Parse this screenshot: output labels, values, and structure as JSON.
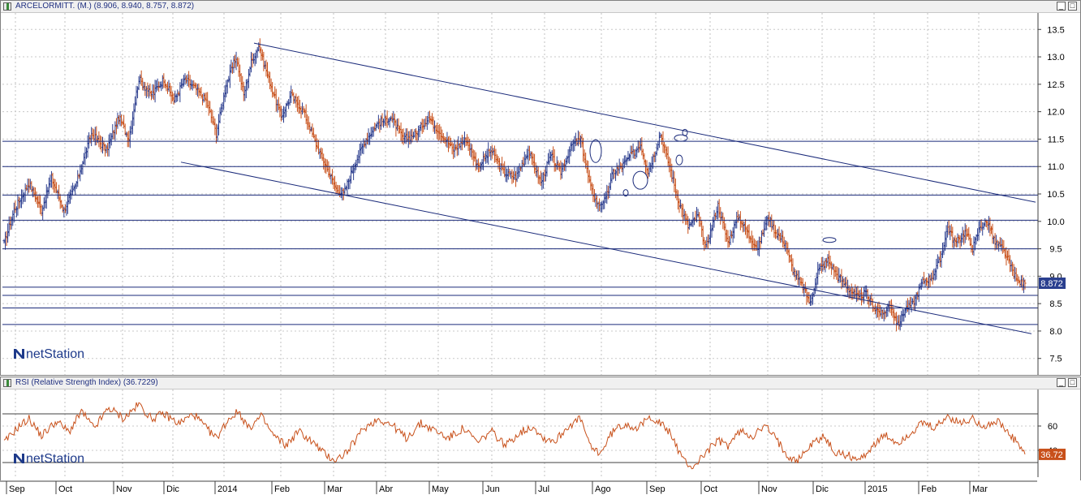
{
  "price_panel": {
    "title": "ARCELORMITT. (M.) (8.906, 8.940, 8.757, 8.872)",
    "logo": "netStation",
    "last_price_label": "8.872"
  },
  "rsi_panel": {
    "title": "RSI (Relative Strength Index) (36.7229)",
    "logo": "netStation",
    "last_value_label": "36.72"
  },
  "window_buttons": {
    "minimize": "_",
    "maximize": "□"
  },
  "colors": {
    "bar_up": "#2d3f8f",
    "bar_down": "#c8501a",
    "lines": "#1a2a7a",
    "rsi_line": "#c8501a",
    "price_tag": "#2a3f8f",
    "rsi_tag": "#c8501a"
  },
  "x_axis": {
    "labels": [
      "Sep",
      "Oct",
      "Nov",
      "Dic",
      "2014",
      "Feb",
      "Mar",
      "Abr",
      "May",
      "Jun",
      "Jul",
      "Ago",
      "Sep",
      "Oct",
      "Nov",
      "Dic",
      "2015",
      "Feb",
      "Mar"
    ]
  },
  "chart_data": [
    {
      "type": "ohlc",
      "title": "ARCELORMITT. (M.)",
      "last": {
        "open": 8.906,
        "high": 8.94,
        "low": 8.757,
        "close": 8.872
      },
      "ylim": [
        7.2,
        13.8
      ],
      "y_ticks": [
        7.5,
        8.0,
        8.5,
        9.0,
        9.5,
        10.0,
        10.5,
        11.0,
        11.5,
        12.0,
        12.5,
        13.0,
        13.5
      ],
      "x_period": [
        "2013-09",
        "2015-03"
      ],
      "anchors": [
        [
          0,
          9.6
        ],
        [
          8,
          10.2
        ],
        [
          20,
          10.7
        ],
        [
          30,
          10.2
        ],
        [
          38,
          10.8
        ],
        [
          48,
          10.2
        ],
        [
          58,
          10.7
        ],
        [
          70,
          11.6
        ],
        [
          82,
          11.3
        ],
        [
          92,
          11.9
        ],
        [
          100,
          11.5
        ],
        [
          108,
          12.6
        ],
        [
          118,
          12.3
        ],
        [
          128,
          12.6
        ],
        [
          136,
          12.2
        ],
        [
          145,
          12.6
        ],
        [
          150,
          12.5
        ],
        [
          162,
          12.2
        ],
        [
          170,
          11.6
        ],
        [
          178,
          12.5
        ],
        [
          186,
          13.0
        ],
        [
          192,
          12.3
        ],
        [
          198,
          12.9
        ],
        [
          204,
          13.2
        ],
        [
          212,
          12.6
        ],
        [
          222,
          11.9
        ],
        [
          230,
          12.3
        ],
        [
          240,
          12.0
        ],
        [
          250,
          11.4
        ],
        [
          258,
          11.0
        ],
        [
          266,
          10.6
        ],
        [
          272,
          10.5
        ],
        [
          280,
          11.0
        ],
        [
          290,
          11.5
        ],
        [
          300,
          11.8
        ],
        [
          310,
          11.9
        ],
        [
          320,
          11.5
        ],
        [
          330,
          11.6
        ],
        [
          340,
          11.9
        ],
        [
          350,
          11.6
        ],
        [
          360,
          11.3
        ],
        [
          370,
          11.5
        ],
        [
          380,
          11.0
        ],
        [
          390,
          11.3
        ],
        [
          400,
          10.9
        ],
        [
          410,
          10.8
        ],
        [
          420,
          11.3
        ],
        [
          430,
          10.7
        ],
        [
          438,
          11.2
        ],
        [
          446,
          10.9
        ],
        [
          455,
          11.4
        ],
        [
          462,
          11.5
        ],
        [
          470,
          10.6
        ],
        [
          476,
          10.3
        ],
        [
          482,
          10.4
        ],
        [
          488,
          10.9
        ],
        [
          495,
          11.0
        ],
        [
          502,
          11.2
        ],
        [
          510,
          11.4
        ],
        [
          516,
          10.9
        ],
        [
          522,
          11.3
        ],
        [
          526,
          11.6
        ],
        [
          532,
          11.1
        ],
        [
          540,
          10.4
        ],
        [
          548,
          9.9
        ],
        [
          556,
          10.1
        ],
        [
          562,
          9.5
        ],
        [
          572,
          10.3
        ],
        [
          580,
          9.6
        ],
        [
          588,
          10.1
        ],
        [
          598,
          9.7
        ],
        [
          604,
          9.5
        ],
        [
          612,
          10.1
        ],
        [
          618,
          9.8
        ],
        [
          626,
          9.6
        ],
        [
          632,
          9.1
        ],
        [
          640,
          8.8
        ],
        [
          646,
          8.5
        ],
        [
          652,
          9.1
        ],
        [
          660,
          9.3
        ],
        [
          668,
          9.0
        ],
        [
          676,
          8.8
        ],
        [
          684,
          8.6
        ],
        [
          690,
          8.7
        ],
        [
          698,
          8.4
        ],
        [
          704,
          8.3
        ],
        [
          710,
          8.5
        ],
        [
          716,
          8.1
        ],
        [
          722,
          8.4
        ],
        [
          728,
          8.5
        ],
        [
          736,
          8.9
        ],
        [
          744,
          9.0
        ],
        [
          750,
          9.3
        ],
        [
          756,
          9.9
        ],
        [
          762,
          9.6
        ],
        [
          770,
          9.8
        ],
        [
          776,
          9.5
        ],
        [
          782,
          9.9
        ],
        [
          788,
          10.0
        ],
        [
          794,
          9.6
        ],
        [
          800,
          9.5
        ],
        [
          806,
          9.2
        ],
        [
          812,
          8.9
        ],
        [
          818,
          8.87
        ]
      ],
      "h_lines": [
        11.46,
        11.0,
        10.48,
        10.02,
        9.5,
        8.8,
        8.65,
        8.42,
        8.12
      ],
      "trendlines": [
        {
          "from": [
            "2014-02-w1",
            13.25
          ],
          "to": [
            "2015-03-end",
            10.35
          ]
        },
        {
          "from": [
            "2013-12-w1",
            11.08
          ],
          "to": [
            "2015-03-end",
            7.95
          ]
        }
      ],
      "annotations": [
        "ellipse",
        "ellipse",
        "ellipse",
        "ellipse",
        "ellipse",
        "ellipse",
        "ellipse"
      ]
    },
    {
      "type": "line",
      "title": "RSI (Relative Strength Index)",
      "last_value": 36.7229,
      "ylim": [
        18,
        90
      ],
      "y_ticks": [
        40,
        60
      ],
      "h_lines": [
        70,
        30
      ],
      "anchors": [
        [
          0,
          46
        ],
        [
          10,
          58
        ],
        [
          20,
          66
        ],
        [
          30,
          52
        ],
        [
          42,
          64
        ],
        [
          52,
          55
        ],
        [
          62,
          72
        ],
        [
          72,
          58
        ],
        [
          84,
          75
        ],
        [
          96,
          66
        ],
        [
          108,
          78
        ],
        [
          118,
          66
        ],
        [
          128,
          70
        ],
        [
          140,
          62
        ],
        [
          152,
          70
        ],
        [
          162,
          58
        ],
        [
          170,
          50
        ],
        [
          180,
          66
        ],
        [
          188,
          72
        ],
        [
          196,
          58
        ],
        [
          206,
          68
        ],
        [
          216,
          52
        ],
        [
          226,
          44
        ],
        [
          236,
          56
        ],
        [
          248,
          46
        ],
        [
          258,
          36
        ],
        [
          266,
          32
        ],
        [
          276,
          40
        ],
        [
          288,
          58
        ],
        [
          300,
          66
        ],
        [
          312,
          60
        ],
        [
          322,
          50
        ],
        [
          334,
          62
        ],
        [
          346,
          56
        ],
        [
          356,
          50
        ],
        [
          368,
          58
        ],
        [
          380,
          46
        ],
        [
          390,
          56
        ],
        [
          402,
          44
        ],
        [
          412,
          54
        ],
        [
          424,
          60
        ],
        [
          432,
          50
        ],
        [
          442,
          48
        ],
        [
          452,
          60
        ],
        [
          462,
          66
        ],
        [
          470,
          42
        ],
        [
          478,
          38
        ],
        [
          488,
          56
        ],
        [
          498,
          62
        ],
        [
          508,
          58
        ],
        [
          518,
          68
        ],
        [
          526,
          62
        ],
        [
          534,
          54
        ],
        [
          544,
          32
        ],
        [
          552,
          26
        ],
        [
          562,
          38
        ],
        [
          572,
          48
        ],
        [
          580,
          44
        ],
        [
          590,
          56
        ],
        [
          600,
          52
        ],
        [
          610,
          60
        ],
        [
          618,
          50
        ],
        [
          628,
          36
        ],
        [
          636,
          32
        ],
        [
          646,
          44
        ],
        [
          656,
          52
        ],
        [
          666,
          38
        ],
        [
          676,
          36
        ],
        [
          686,
          32
        ],
        [
          696,
          44
        ],
        [
          706,
          52
        ],
        [
          716,
          46
        ],
        [
          726,
          54
        ],
        [
          736,
          62
        ],
        [
          746,
          58
        ],
        [
          756,
          68
        ],
        [
          766,
          62
        ],
        [
          776,
          66
        ],
        [
          786,
          60
        ],
        [
          796,
          64
        ],
        [
          806,
          52
        ],
        [
          812,
          46
        ],
        [
          818,
          37
        ]
      ]
    }
  ]
}
